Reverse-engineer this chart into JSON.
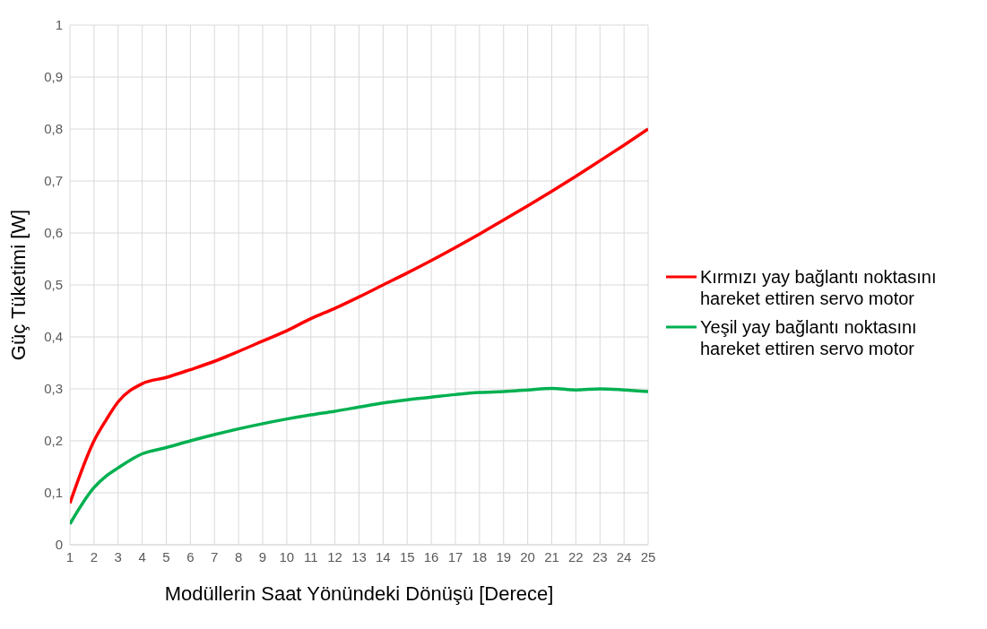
{
  "chart_data": {
    "type": "line",
    "xlabel": "Modüllerin Saat Yönündeki Dönüşü [Derece]",
    "ylabel": "Güç Tüketimi [W]",
    "x": [
      1,
      2,
      2.5,
      3,
      4,
      5,
      6,
      7,
      8,
      9,
      10,
      11,
      12,
      13,
      14,
      15,
      16,
      17,
      18,
      19,
      20,
      21,
      22,
      23,
      24,
      25
    ],
    "series": [
      {
        "name": "Kırmızı yay bağlantı noktasını hareket ettiren servo motor",
        "color": "#ff0000",
        "values": [
          0.08,
          0.2,
          0.24,
          0.275,
          0.31,
          0.322,
          0.337,
          0.353,
          0.372,
          0.392,
          0.412,
          0.435,
          0.455,
          0.477,
          0.5,
          0.523,
          0.547,
          0.572,
          0.598,
          0.625,
          0.652,
          0.68,
          0.709,
          0.739,
          0.769,
          0.8
        ]
      },
      {
        "name": "Yeşil yay bağlantı noktasını hareket ettiren servo motor",
        "color": "#00b050",
        "values": [
          0.04,
          0.11,
          0.132,
          0.148,
          0.175,
          0.187,
          0.2,
          0.212,
          0.223,
          0.233,
          0.242,
          0.25,
          0.257,
          0.265,
          0.273,
          0.279,
          0.284,
          0.289,
          0.293,
          0.295,
          0.298,
          0.301,
          0.298,
          0.3,
          0.298,
          0.295
        ]
      }
    ],
    "xlim": [
      1,
      25
    ],
    "xticks": [
      1,
      2,
      3,
      4,
      5,
      6,
      7,
      8,
      9,
      10,
      11,
      12,
      13,
      14,
      15,
      16,
      17,
      18,
      19,
      20,
      21,
      22,
      23,
      24,
      25
    ],
    "ylim": [
      0,
      1
    ],
    "yticks": [
      0,
      {
        "value": 0.1,
        "label": "0,1"
      },
      {
        "value": 0.2,
        "label": "0,2"
      },
      {
        "value": 0.3,
        "label": "0,3"
      },
      {
        "value": 0.4,
        "label": "0,4"
      },
      {
        "value": 0.5,
        "label": "0,5"
      },
      {
        "value": 0.6,
        "label": "0,6"
      },
      {
        "value": 0.7,
        "label": "0,7"
      },
      {
        "value": 0.8,
        "label": "0,8"
      },
      {
        "value": 0.9,
        "label": "0,9"
      },
      1
    ],
    "grid": true,
    "legend": "right",
    "marker": "none",
    "line_style": "solid"
  }
}
